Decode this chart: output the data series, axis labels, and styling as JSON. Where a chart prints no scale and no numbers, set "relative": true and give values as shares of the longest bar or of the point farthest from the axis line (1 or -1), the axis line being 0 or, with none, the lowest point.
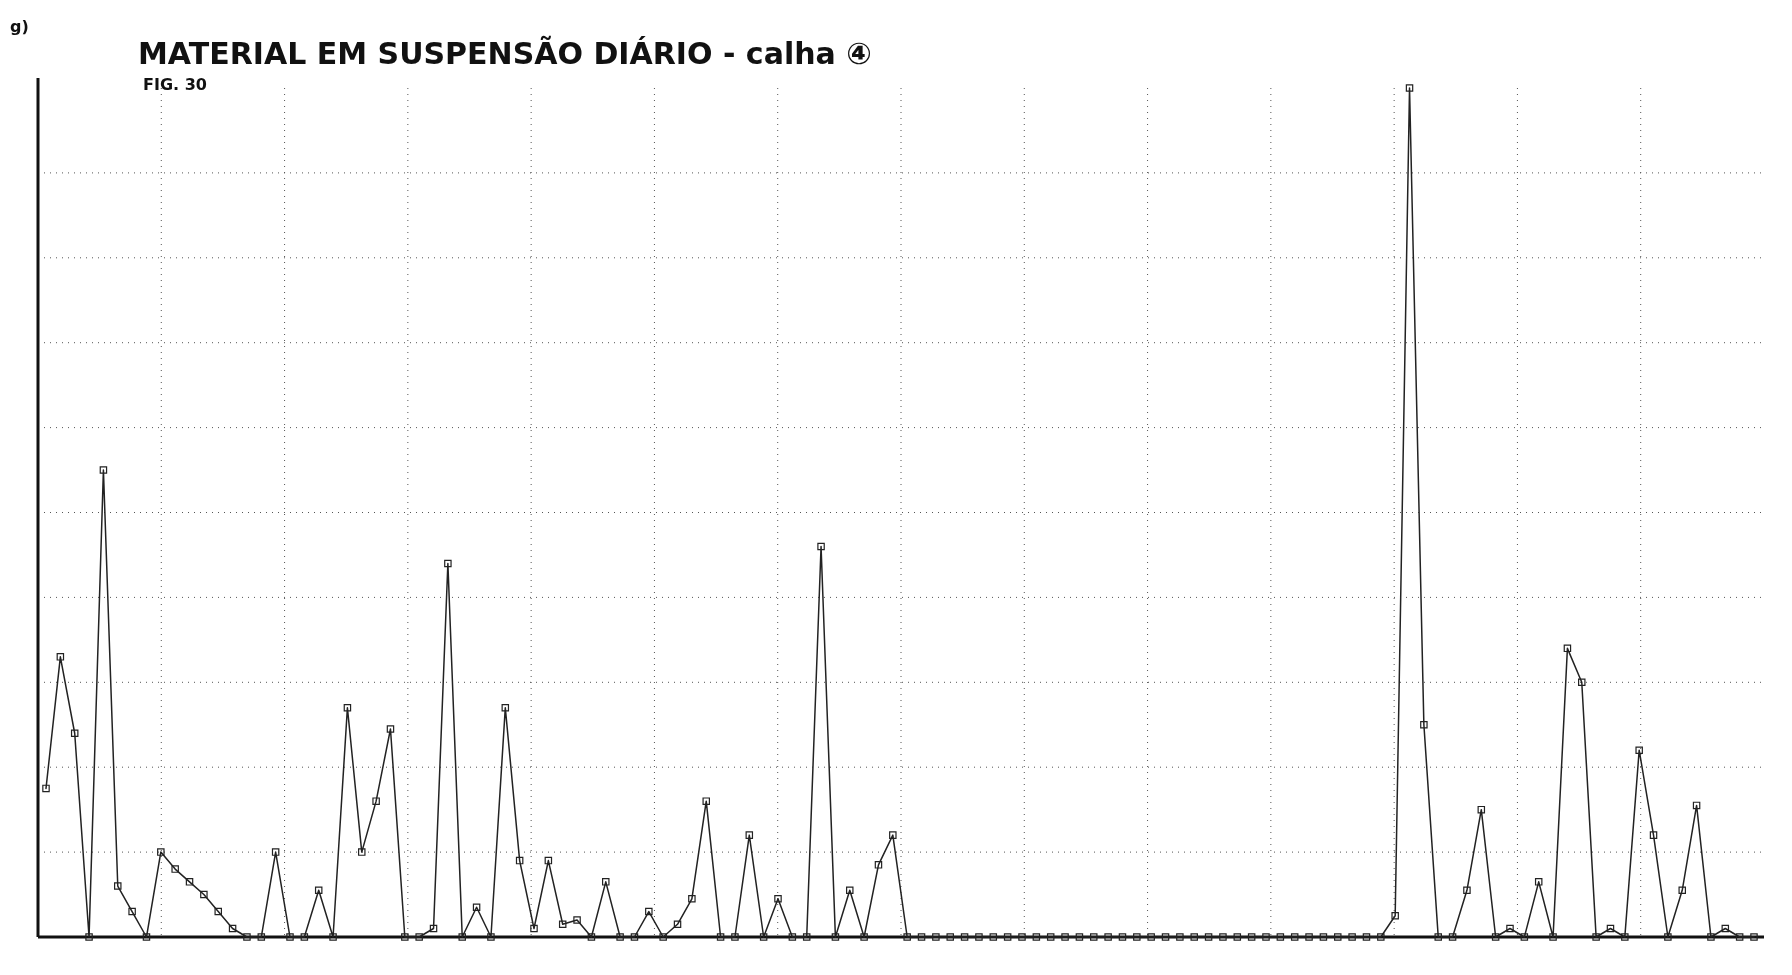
{
  "chart_data": {
    "type": "line",
    "title": "MATERIAL EM SUSPENSÃO DIÁRIO - calha ④",
    "subtitle": "FIG. 30",
    "ylabel": "g)",
    "relative": true,
    "grid": true,
    "marker": "square",
    "line_style": "solid",
    "categories": [
      null,
      null,
      null,
      null,
      null,
      null,
      null,
      null,
      null,
      null,
      null,
      null,
      null,
      null,
      null,
      null,
      null,
      null,
      null,
      null,
      null,
      null,
      null,
      null,
      null,
      null,
      null,
      null,
      null,
      null,
      null,
      null,
      null,
      null,
      null,
      null,
      null,
      null,
      null,
      null,
      null,
      null,
      null,
      null,
      null,
      null,
      null,
      null,
      null,
      null,
      null,
      null,
      null,
      null,
      null,
      null,
      null,
      null,
      null,
      null,
      null,
      null,
      null,
      null,
      null,
      null,
      null,
      null,
      null,
      null,
      null,
      null,
      null,
      null,
      null,
      null,
      null,
      null,
      null,
      null,
      null,
      null,
      null,
      null,
      null,
      null,
      null,
      null,
      null,
      null,
      null,
      null,
      null,
      null,
      null,
      null,
      null,
      null,
      null,
      null,
      null,
      null,
      null,
      null,
      null,
      null,
      null,
      null,
      null,
      null,
      null,
      null,
      null,
      null,
      null,
      null,
      null,
      null,
      null,
      null
    ],
    "series": [
      {
        "color": "#222222",
        "values": [
          0.175,
          0.33,
          0.24,
          0,
          0.55,
          0.06,
          0.03,
          0,
          0.1,
          0.08,
          0.065,
          0.05,
          0.03,
          0.01,
          0,
          0,
          0.1,
          0,
          0,
          0.055,
          0,
          0.27,
          0.1,
          0.16,
          0.245,
          0,
          0,
          0.01,
          0.44,
          0,
          0.035,
          0,
          0.27,
          0.09,
          0.01,
          0.09,
          0.015,
          0.02,
          0,
          0.065,
          0,
          0,
          0.03,
          0,
          0.015,
          0.045,
          0.16,
          0,
          0,
          0.12,
          0,
          0.045,
          0,
          0,
          0.46,
          0,
          0.055,
          0,
          0.085,
          0.12,
          0,
          0,
          0,
          0,
          0,
          0,
          0,
          0,
          0,
          0,
          0,
          0,
          0,
          0,
          0,
          0,
          0,
          0,
          0,
          0,
          0,
          0,
          0,
          0,
          0,
          0,
          0,
          0,
          0,
          0,
          0,
          0,
          0,
          0,
          0.025,
          1,
          0.25,
          0,
          0,
          0.055,
          0.15,
          0,
          0.01,
          0,
          0.065,
          0,
          0.34,
          0.3,
          0,
          0.01,
          0,
          0.22,
          0.12,
          0,
          0.055,
          0.155,
          0,
          0.01,
          0,
          0
        ]
      }
    ]
  }
}
